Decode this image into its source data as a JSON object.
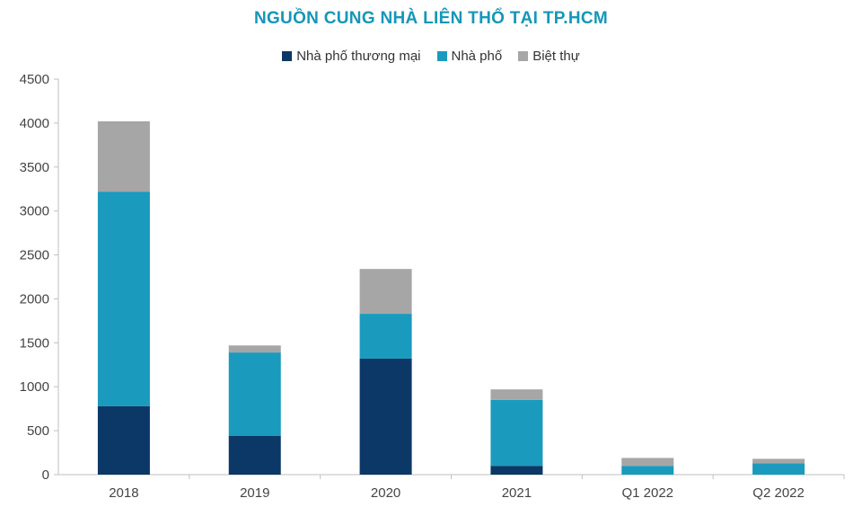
{
  "chart_data": {
    "type": "bar",
    "stacked": true,
    "title": "NGUỒN CUNG NHÀ LIÊN THỔ TẠI TP.HCM",
    "categories": [
      "2018",
      "2019",
      "2020",
      "2021",
      "Q1 2022",
      "Q2 2022"
    ],
    "series": [
      {
        "name": "Nhà phố thương mại",
        "color": "#0b3866",
        "values": [
          780,
          440,
          1320,
          100,
          0,
          0
        ]
      },
      {
        "name": "Nhà phố",
        "color": "#1a9abd",
        "values": [
          2440,
          950,
          510,
          750,
          100,
          130
        ]
      },
      {
        "name": "Biệt thự",
        "color": "#a6a6a6",
        "values": [
          800,
          80,
          510,
          120,
          90,
          50
        ]
      }
    ],
    "ylim": [
      0,
      4500
    ],
    "yticks": [
      0,
      500,
      1000,
      1500,
      2000,
      2500,
      3000,
      3500,
      4000,
      4500
    ],
    "legend_position": "top-center",
    "grid": false
  }
}
